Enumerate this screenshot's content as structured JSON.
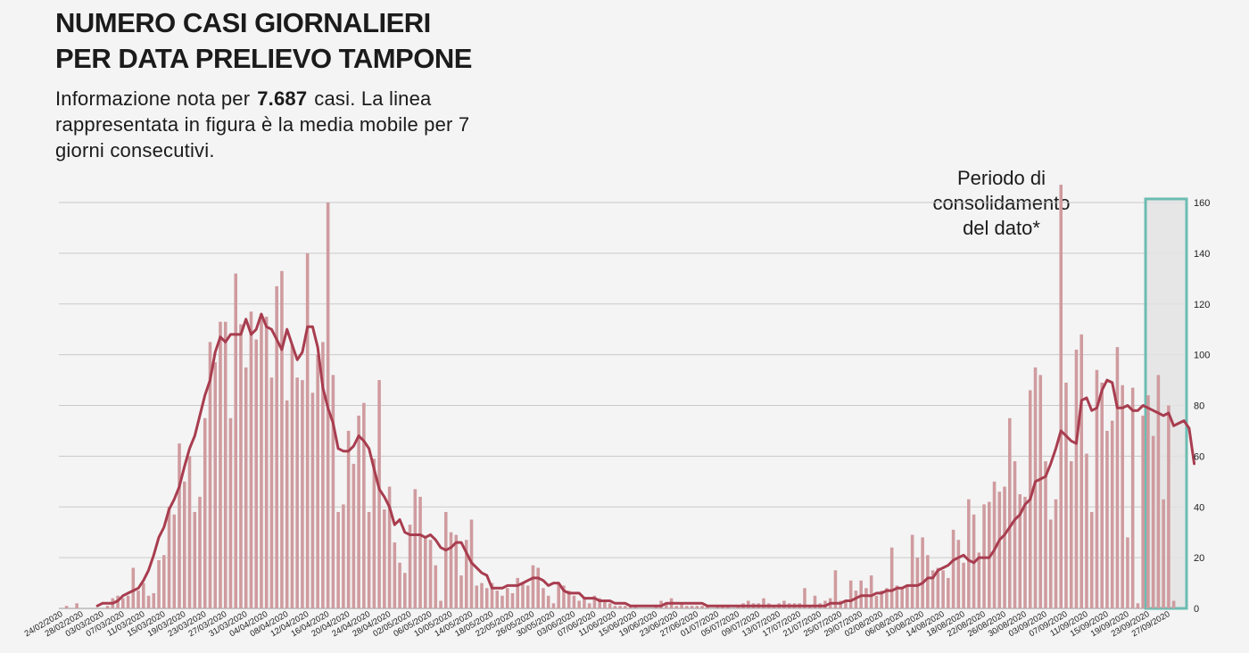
{
  "header": {
    "title_line1": "NUMERO CASI GIORNALIERI",
    "title_line2": "PER DATA PRELIEVO TAMPONE",
    "subtitle_pre": "Informazione nota per",
    "subtitle_count": "7.687",
    "subtitle_post": "casi. La linea rappresentata in figura è la media mobile per 7 giorni consecutivi."
  },
  "annotation": {
    "line1": "Periodo di",
    "line2": "consolidamento",
    "line3": "del dato*"
  },
  "chart_data": {
    "type": "bar",
    "start_date": "2020-02-24",
    "end_date": "2020-09-30",
    "ylim": [
      0,
      160
    ],
    "yticks": [
      0,
      20,
      40,
      60,
      80,
      100,
      120,
      140,
      160
    ],
    "grid": true,
    "bar_color": "#cf9b9f",
    "line_color": "#a83d4f",
    "highlight_color": "#6cbcb1",
    "highlight_range": [
      "2020-09-23",
      "2020-09-30"
    ],
    "xtick_labels": [
      "24/02/2020",
      "28/02/2020",
      "03/03/2020",
      "07/03/2020",
      "11/03/2020",
      "15/03/2020",
      "19/03/2020",
      "23/03/2020",
      "27/03/2020",
      "31/03/2020",
      "04/04/2020",
      "08/04/2020",
      "12/04/2020",
      "16/04/2020",
      "20/04/2020",
      "24/04/2020",
      "28/04/2020",
      "02/05/2020",
      "06/05/2020",
      "10/05/2020",
      "14/05/2020",
      "18/05/2020",
      "22/05/2020",
      "26/05/2020",
      "30/05/2020",
      "03/06/2020",
      "07/06/2020",
      "11/06/2020",
      "15/06/2020",
      "19/06/2020",
      "23/06/2020",
      "27/06/2020",
      "01/07/2020",
      "05/07/2020",
      "09/07/2020",
      "13/07/2020",
      "17/07/2020",
      "21/07/2020",
      "25/07/2020",
      "29/07/2020",
      "02/08/2020",
      "06/08/2020",
      "10/08/2020",
      "14/08/2020",
      "18/08/2020",
      "22/08/2020",
      "26/08/2020",
      "30/08/2020",
      "03/09/2020",
      "07/09/2020",
      "11/09/2020",
      "15/09/2020",
      "19/09/2020",
      "23/09/2020",
      "27/09/2020"
    ],
    "values": [
      0,
      1,
      0,
      2,
      0,
      0,
      0,
      0,
      0,
      1,
      4,
      5,
      4,
      5,
      16,
      7,
      10,
      5,
      6,
      19,
      21,
      40,
      37,
      65,
      50,
      60,
      38,
      44,
      75,
      105,
      97,
      113,
      113,
      75,
      132,
      112,
      95,
      117,
      106,
      116,
      115,
      91,
      127,
      133,
      82,
      104,
      91,
      90,
      140,
      85,
      100,
      105,
      160,
      92,
      38,
      41,
      70,
      57,
      76,
      81,
      38,
      59,
      90,
      39,
      48,
      26,
      18,
      14,
      33,
      47,
      44,
      28,
      27,
      17,
      3,
      38,
      30,
      29,
      13,
      27,
      35,
      9,
      10,
      8,
      10,
      7,
      5,
      8,
      6,
      12,
      10,
      9,
      17,
      16,
      8,
      5,
      2,
      10,
      9,
      7,
      5,
      3,
      4,
      2,
      5,
      4,
      3,
      2,
      1,
      1,
      1,
      1,
      1,
      0,
      0,
      0,
      1,
      3,
      2,
      4,
      1,
      2,
      1,
      1,
      1,
      1,
      1,
      0,
      1,
      1,
      1,
      0,
      1,
      2,
      3,
      2,
      2,
      4,
      2,
      1,
      2,
      3,
      2,
      2,
      2,
      8,
      1,
      5,
      2,
      3,
      4,
      15,
      3,
      3,
      11,
      7,
      11,
      8,
      13,
      5,
      7,
      8,
      24,
      9,
      8,
      9,
      29,
      20,
      28,
      21,
      15,
      16,
      15,
      12,
      31,
      27,
      18,
      43,
      37,
      22,
      41,
      42,
      50,
      46,
      48,
      75,
      58,
      45,
      44,
      86,
      95,
      92,
      58,
      35,
      43,
      167,
      89,
      58,
      102,
      108,
      61,
      38,
      94,
      89,
      70,
      74,
      103,
      88,
      28,
      87,
      2,
      76,
      84,
      68,
      92,
      43,
      80,
      3
    ],
    "moving_average": [
      1,
      2,
      2,
      2,
      3,
      5,
      6,
      7,
      8,
      11,
      15,
      21,
      28,
      32,
      39,
      43,
      48,
      56,
      63,
      68,
      76,
      84,
      90,
      101,
      107,
      105,
      108,
      108,
      108,
      114,
      108,
      110,
      116,
      111,
      110,
      106,
      102,
      110,
      104,
      98,
      101,
      111,
      111,
      103,
      87,
      79,
      73,
      63,
      62,
      62,
      64,
      68,
      66,
      63,
      55,
      47,
      44,
      40,
      33,
      35,
      30,
      29,
      29,
      29,
      28,
      29,
      27,
      24,
      23,
      24,
      26,
      26,
      22,
      18,
      16,
      14,
      13,
      8,
      8,
      8,
      9,
      9,
      9,
      10,
      11,
      12,
      12,
      11,
      9,
      10,
      10,
      7,
      6,
      6,
      6,
      4,
      4,
      4,
      3,
      3,
      3,
      2,
      2,
      2,
      1,
      1,
      1,
      1,
      1,
      1,
      1,
      2,
      2,
      2,
      2,
      2,
      2,
      2,
      2,
      1,
      1,
      1,
      1,
      1,
      1,
      1,
      1,
      1,
      1,
      1,
      1,
      1,
      1,
      1,
      1,
      1,
      1,
      1,
      1,
      1,
      1,
      1,
      1,
      2,
      2,
      2,
      3,
      3,
      4,
      5,
      5,
      5,
      6,
      6,
      7,
      7,
      8,
      8,
      9,
      9,
      9,
      10,
      12,
      12,
      15,
      16,
      17,
      19,
      20,
      21,
      19,
      18,
      20,
      20,
      20,
      23,
      27,
      29,
      32,
      35,
      37,
      41,
      43,
      50,
      51,
      52,
      57,
      63,
      70,
      68,
      66,
      65,
      82,
      83,
      78,
      79,
      86,
      90,
      89,
      79,
      79,
      80,
      78,
      78,
      80,
      79,
      78,
      77,
      76,
      77,
      72,
      73,
      74,
      71,
      57
    ]
  }
}
